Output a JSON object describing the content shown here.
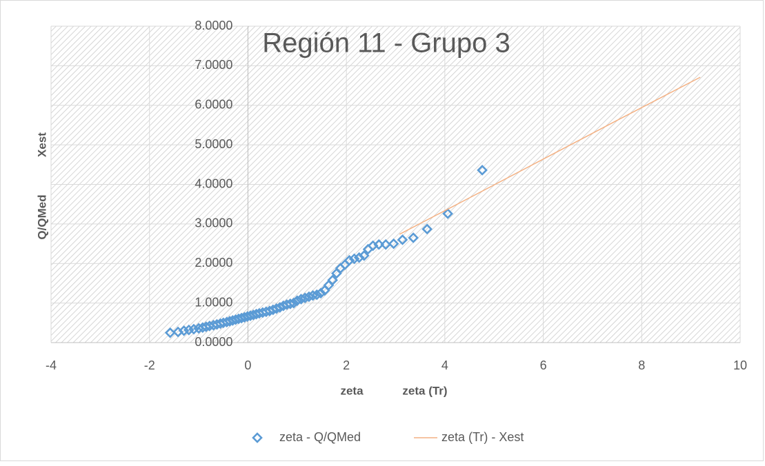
{
  "chart_data": {
    "type": "scatter",
    "title": "Región 11 - Grupo 3",
    "xlabels": [
      "zeta",
      "zeta (Tr)"
    ],
    "ylabels": [
      "Q/QMed",
      "Xest"
    ],
    "xlim": [
      -4,
      10
    ],
    "xticks": [
      -4,
      -2,
      0,
      2,
      4,
      6,
      8,
      10
    ],
    "ylim": [
      0,
      8
    ],
    "yticks": [
      {
        "value": 0,
        "label": "0.0000"
      },
      {
        "value": 1,
        "label": "1.0000"
      },
      {
        "value": 2,
        "label": "2.0000"
      },
      {
        "value": 3,
        "label": "3.0000"
      },
      {
        "value": 4,
        "label": "4.0000"
      },
      {
        "value": 5,
        "label": "5.0000"
      },
      {
        "value": 6,
        "label": "6.0000"
      },
      {
        "value": 7,
        "label": "7.0000"
      },
      {
        "value": 8,
        "label": "8.0000"
      }
    ],
    "grid": true,
    "legend": "bottom",
    "series": [
      {
        "name": "zeta - Q/QMed",
        "color": "#5b9bd5",
        "mark": "diamond",
        "x": [
          -1.58,
          -1.42,
          -1.3,
          -1.2,
          -1.1,
          -1.0,
          -0.92,
          -0.85,
          -0.78,
          -0.7,
          -0.63,
          -0.56,
          -0.5,
          -0.43,
          -0.37,
          -0.31,
          -0.25,
          -0.19,
          -0.13,
          -0.07,
          -0.01,
          0.05,
          0.11,
          0.17,
          0.23,
          0.3,
          0.37,
          0.44,
          0.51,
          0.58,
          0.65,
          0.72,
          0.79,
          0.86,
          0.93,
          1.0,
          1.08,
          1.16,
          1.24,
          1.32,
          1.4,
          1.48,
          1.56,
          1.64,
          1.72,
          1.8,
          1.88,
          1.97,
          2.06,
          2.16,
          2.26,
          2.36,
          2.44,
          2.54,
          2.66,
          2.8,
          2.96,
          3.14,
          3.36,
          3.64,
          4.06,
          4.76
        ],
        "values": [
          0.25,
          0.27,
          0.3,
          0.32,
          0.34,
          0.36,
          0.38,
          0.4,
          0.42,
          0.44,
          0.46,
          0.48,
          0.5,
          0.52,
          0.54,
          0.56,
          0.58,
          0.6,
          0.62,
          0.64,
          0.66,
          0.68,
          0.7,
          0.72,
          0.74,
          0.76,
          0.78,
          0.8,
          0.83,
          0.86,
          0.89,
          0.93,
          0.96,
          0.98,
          1.0,
          1.06,
          1.1,
          1.13,
          1.16,
          1.19,
          1.21,
          1.25,
          1.32,
          1.45,
          1.58,
          1.75,
          1.88,
          1.97,
          2.08,
          2.12,
          2.15,
          2.2,
          2.36,
          2.45,
          2.48,
          2.48,
          2.5,
          2.6,
          2.65,
          2.87,
          3.26,
          4.36
        ]
      },
      {
        "name": "zeta (Tr) - Xest",
        "color": "#f4b183",
        "mark": "line",
        "x": [
          3.08,
          4.5,
          6.0,
          7.5,
          9.19
        ],
        "values": [
          2.74,
          3.66,
          4.64,
          5.62,
          6.71
        ]
      }
    ]
  }
}
